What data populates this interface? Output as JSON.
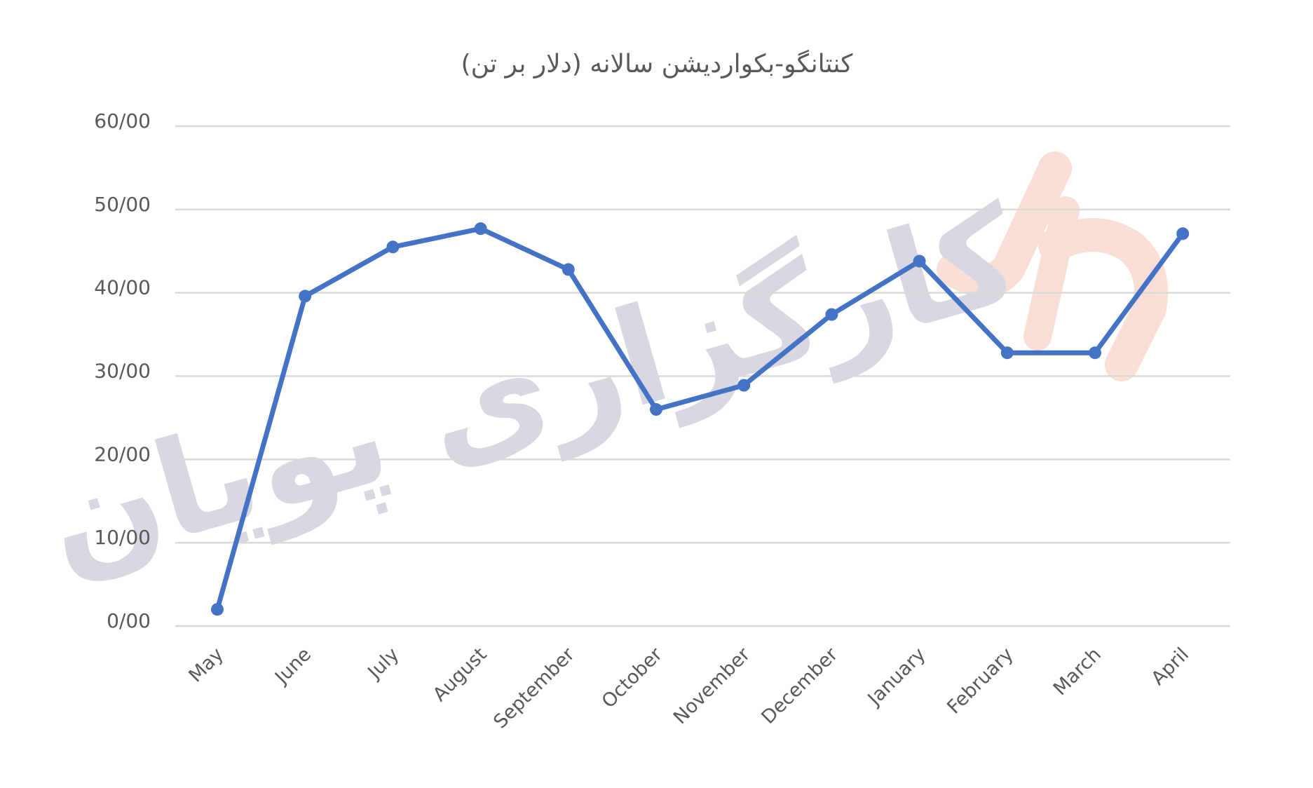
{
  "watermark": {
    "text": "کارگزاری پویان",
    "color": "#d9d8e2",
    "logo_color": "#f9d9cf"
  },
  "chart_data": {
    "type": "line",
    "title": "کنتانگو-بکواردیشن سالانه (دلار بر تن)",
    "xlabel": "",
    "ylabel": "",
    "categories": [
      "May",
      "June",
      "July",
      "August",
      "September",
      "October",
      "November",
      "December",
      "January",
      "February",
      "March",
      "April"
    ],
    "series": [
      {
        "values": [
          2.0,
          39.6,
          45.5,
          47.7,
          42.8,
          26.0,
          28.9,
          37.4,
          43.8,
          32.8,
          32.8,
          47.1
        ],
        "color": "#4472c4"
      }
    ],
    "ylim": [
      0,
      60
    ],
    "yticks": [
      "0/00",
      "10/00",
      "20/00",
      "30/00",
      "40/00",
      "50/00",
      "60/00"
    ],
    "grid": true,
    "legend": "none",
    "colors": {
      "line": "#4472c4",
      "grid": "#d9d9d9",
      "text": "#595959"
    }
  }
}
